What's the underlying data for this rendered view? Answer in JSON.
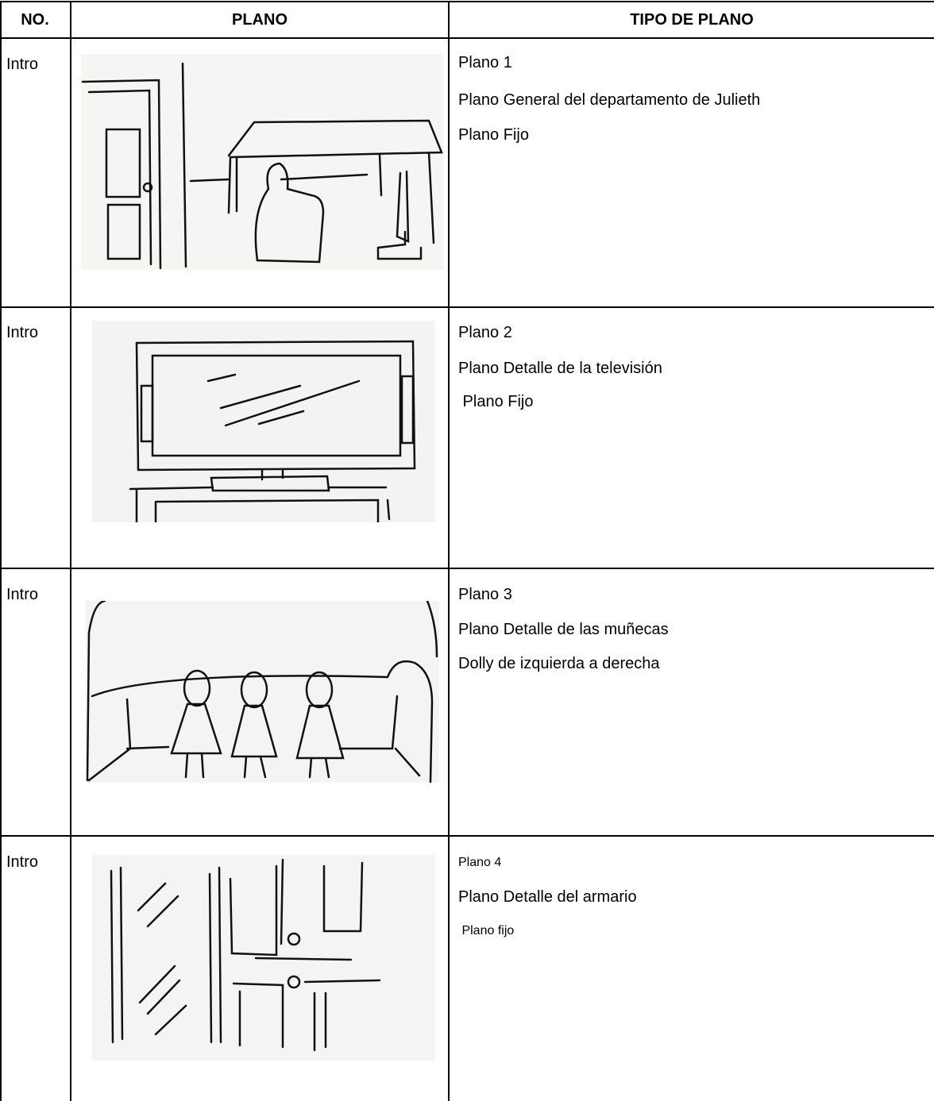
{
  "header": [
    "NO.",
    "PLANO",
    "TIPO DE PLANO"
  ],
  "rows": [
    {
      "no": "Intro",
      "lines": [
        "Plano 1",
        "Plano General del departamento de Julieth",
        "Plano Fijo"
      ]
    },
    {
      "no": "Intro",
      "lines": [
        "Plano 2",
        "Plano Detalle de la televisión",
        " Plano Fijo"
      ]
    },
    {
      "no": "Intro",
      "lines": [
        "Plano 3",
        "Plano Detalle de las muñecas",
        "Dolly de izquierda a derecha"
      ]
    },
    {
      "no": "Intro",
      "lines": [
        "Plano 4",
        "Plano Detalle del armario",
        " Plano fijo"
      ]
    }
  ]
}
